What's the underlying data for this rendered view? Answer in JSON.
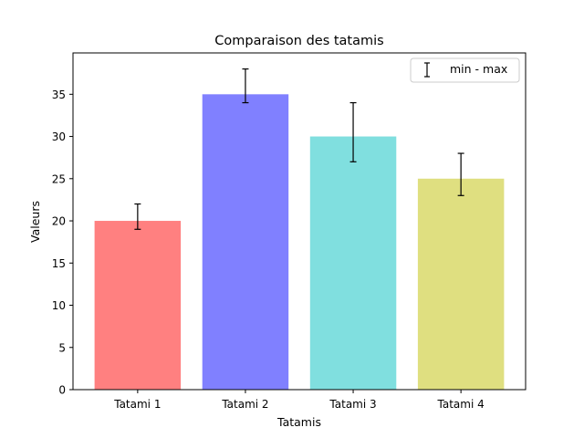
{
  "chart_data": {
    "type": "bar",
    "title": "Comparaison des tatamis",
    "xlabel": "Tatamis",
    "ylabel": "Valeurs",
    "categories": [
      "Tatami 1",
      "Tatami 2",
      "Tatami 3",
      "Tatami 4"
    ],
    "values": [
      20,
      35,
      30,
      25
    ],
    "error_low": [
      19,
      34,
      27,
      23
    ],
    "error_high": [
      22,
      38,
      34,
      28
    ],
    "bar_colors": [
      "#ff8080",
      "#8080ff",
      "#80dfdf",
      "#dfdf80"
    ],
    "ylim": [
      0,
      39.9
    ],
    "yticks": [
      0,
      5,
      10,
      15,
      20,
      25,
      30,
      35
    ],
    "grid": false,
    "legend": {
      "placement": "top-right",
      "entries": [
        "min - max"
      ]
    }
  }
}
